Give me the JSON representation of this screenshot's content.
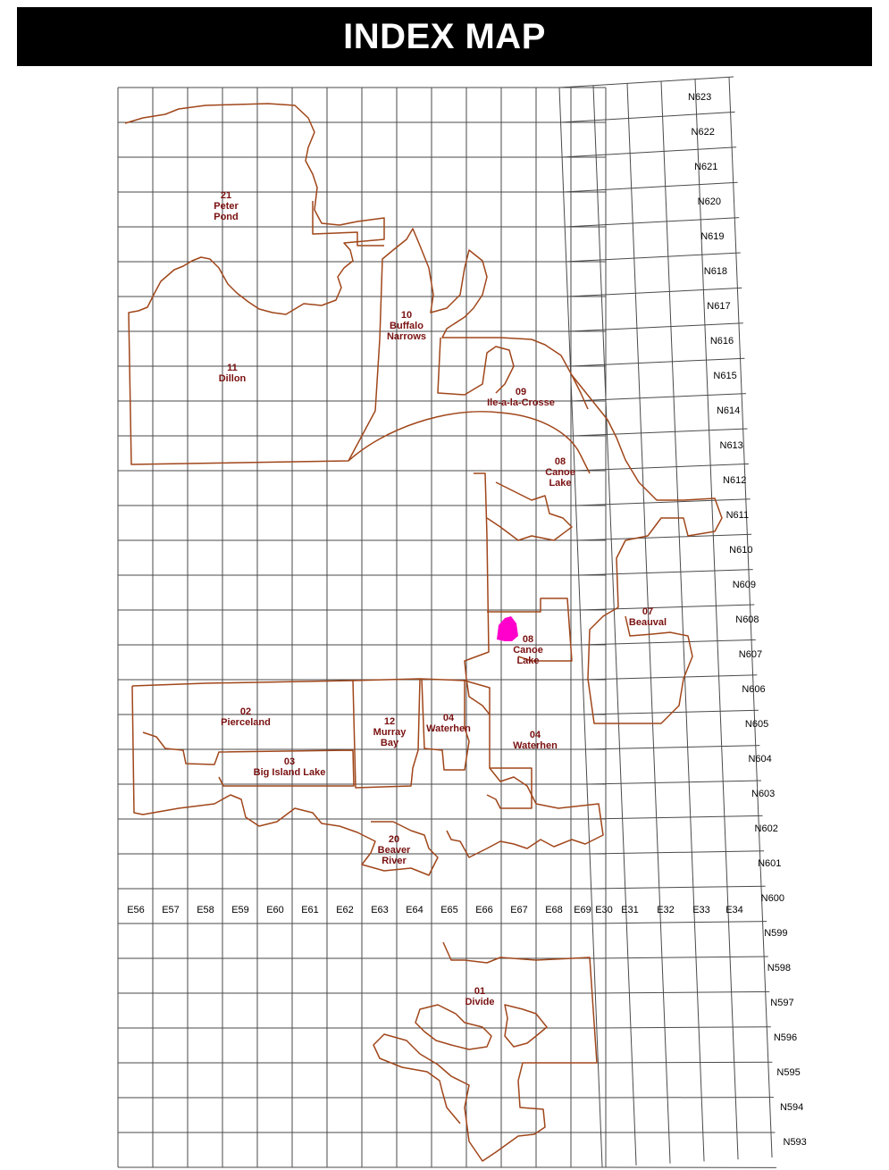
{
  "title": "INDEX MAP",
  "colors": {
    "boundary": "#a0461a",
    "label": "#7a1010",
    "highlight": "#ff00cc",
    "grid": "#4a4a4a"
  },
  "easting_labels": [
    "E56",
    "E57",
    "E58",
    "E59",
    "E60",
    "E61",
    "E62",
    "E63",
    "E64",
    "E65",
    "E66",
    "E67",
    "E68",
    "E69",
    "E30",
    "E31",
    "E32",
    "E33",
    "E34"
  ],
  "northing_labels": [
    "N623",
    "N622",
    "N621",
    "N620",
    "N619",
    "N618",
    "N617",
    "N616",
    "N615",
    "N614",
    "N613",
    "N612",
    "N611",
    "N610",
    "N609",
    "N608",
    "N607",
    "N606",
    "N605",
    "N604",
    "N603",
    "N602",
    "N601",
    "N600",
    "N599",
    "N598",
    "N597",
    "N596",
    "N595",
    "N594",
    "N593"
  ],
  "regions": [
    {
      "id": "21",
      "lines": [
        "21",
        "Peter",
        "Pond"
      ]
    },
    {
      "id": "11",
      "lines": [
        "11",
        "Dillon"
      ]
    },
    {
      "id": "10",
      "lines": [
        "10",
        "Buffalo",
        "Narrows"
      ]
    },
    {
      "id": "09",
      "lines": [
        "09",
        "Ile-a-la-Crosse"
      ]
    },
    {
      "id": "08a",
      "lines": [
        "08",
        "Canoe",
        "Lake"
      ]
    },
    {
      "id": "08b",
      "lines": [
        "08",
        "Canoe",
        "Lake"
      ]
    },
    {
      "id": "07",
      "lines": [
        "07",
        "Beauval"
      ]
    },
    {
      "id": "02",
      "lines": [
        "02",
        "Pierceland"
      ]
    },
    {
      "id": "12",
      "lines": [
        "12",
        "Murray",
        "Bay"
      ]
    },
    {
      "id": "04a",
      "lines": [
        "04",
        "Waterhen"
      ]
    },
    {
      "id": "04b",
      "lines": [
        "04",
        "Waterhen"
      ]
    },
    {
      "id": "03",
      "lines": [
        "03",
        "Big Island Lake"
      ]
    },
    {
      "id": "20",
      "lines": [
        "20",
        "Beaver",
        "River"
      ]
    },
    {
      "id": "01",
      "lines": [
        "01",
        "Divide"
      ]
    }
  ]
}
